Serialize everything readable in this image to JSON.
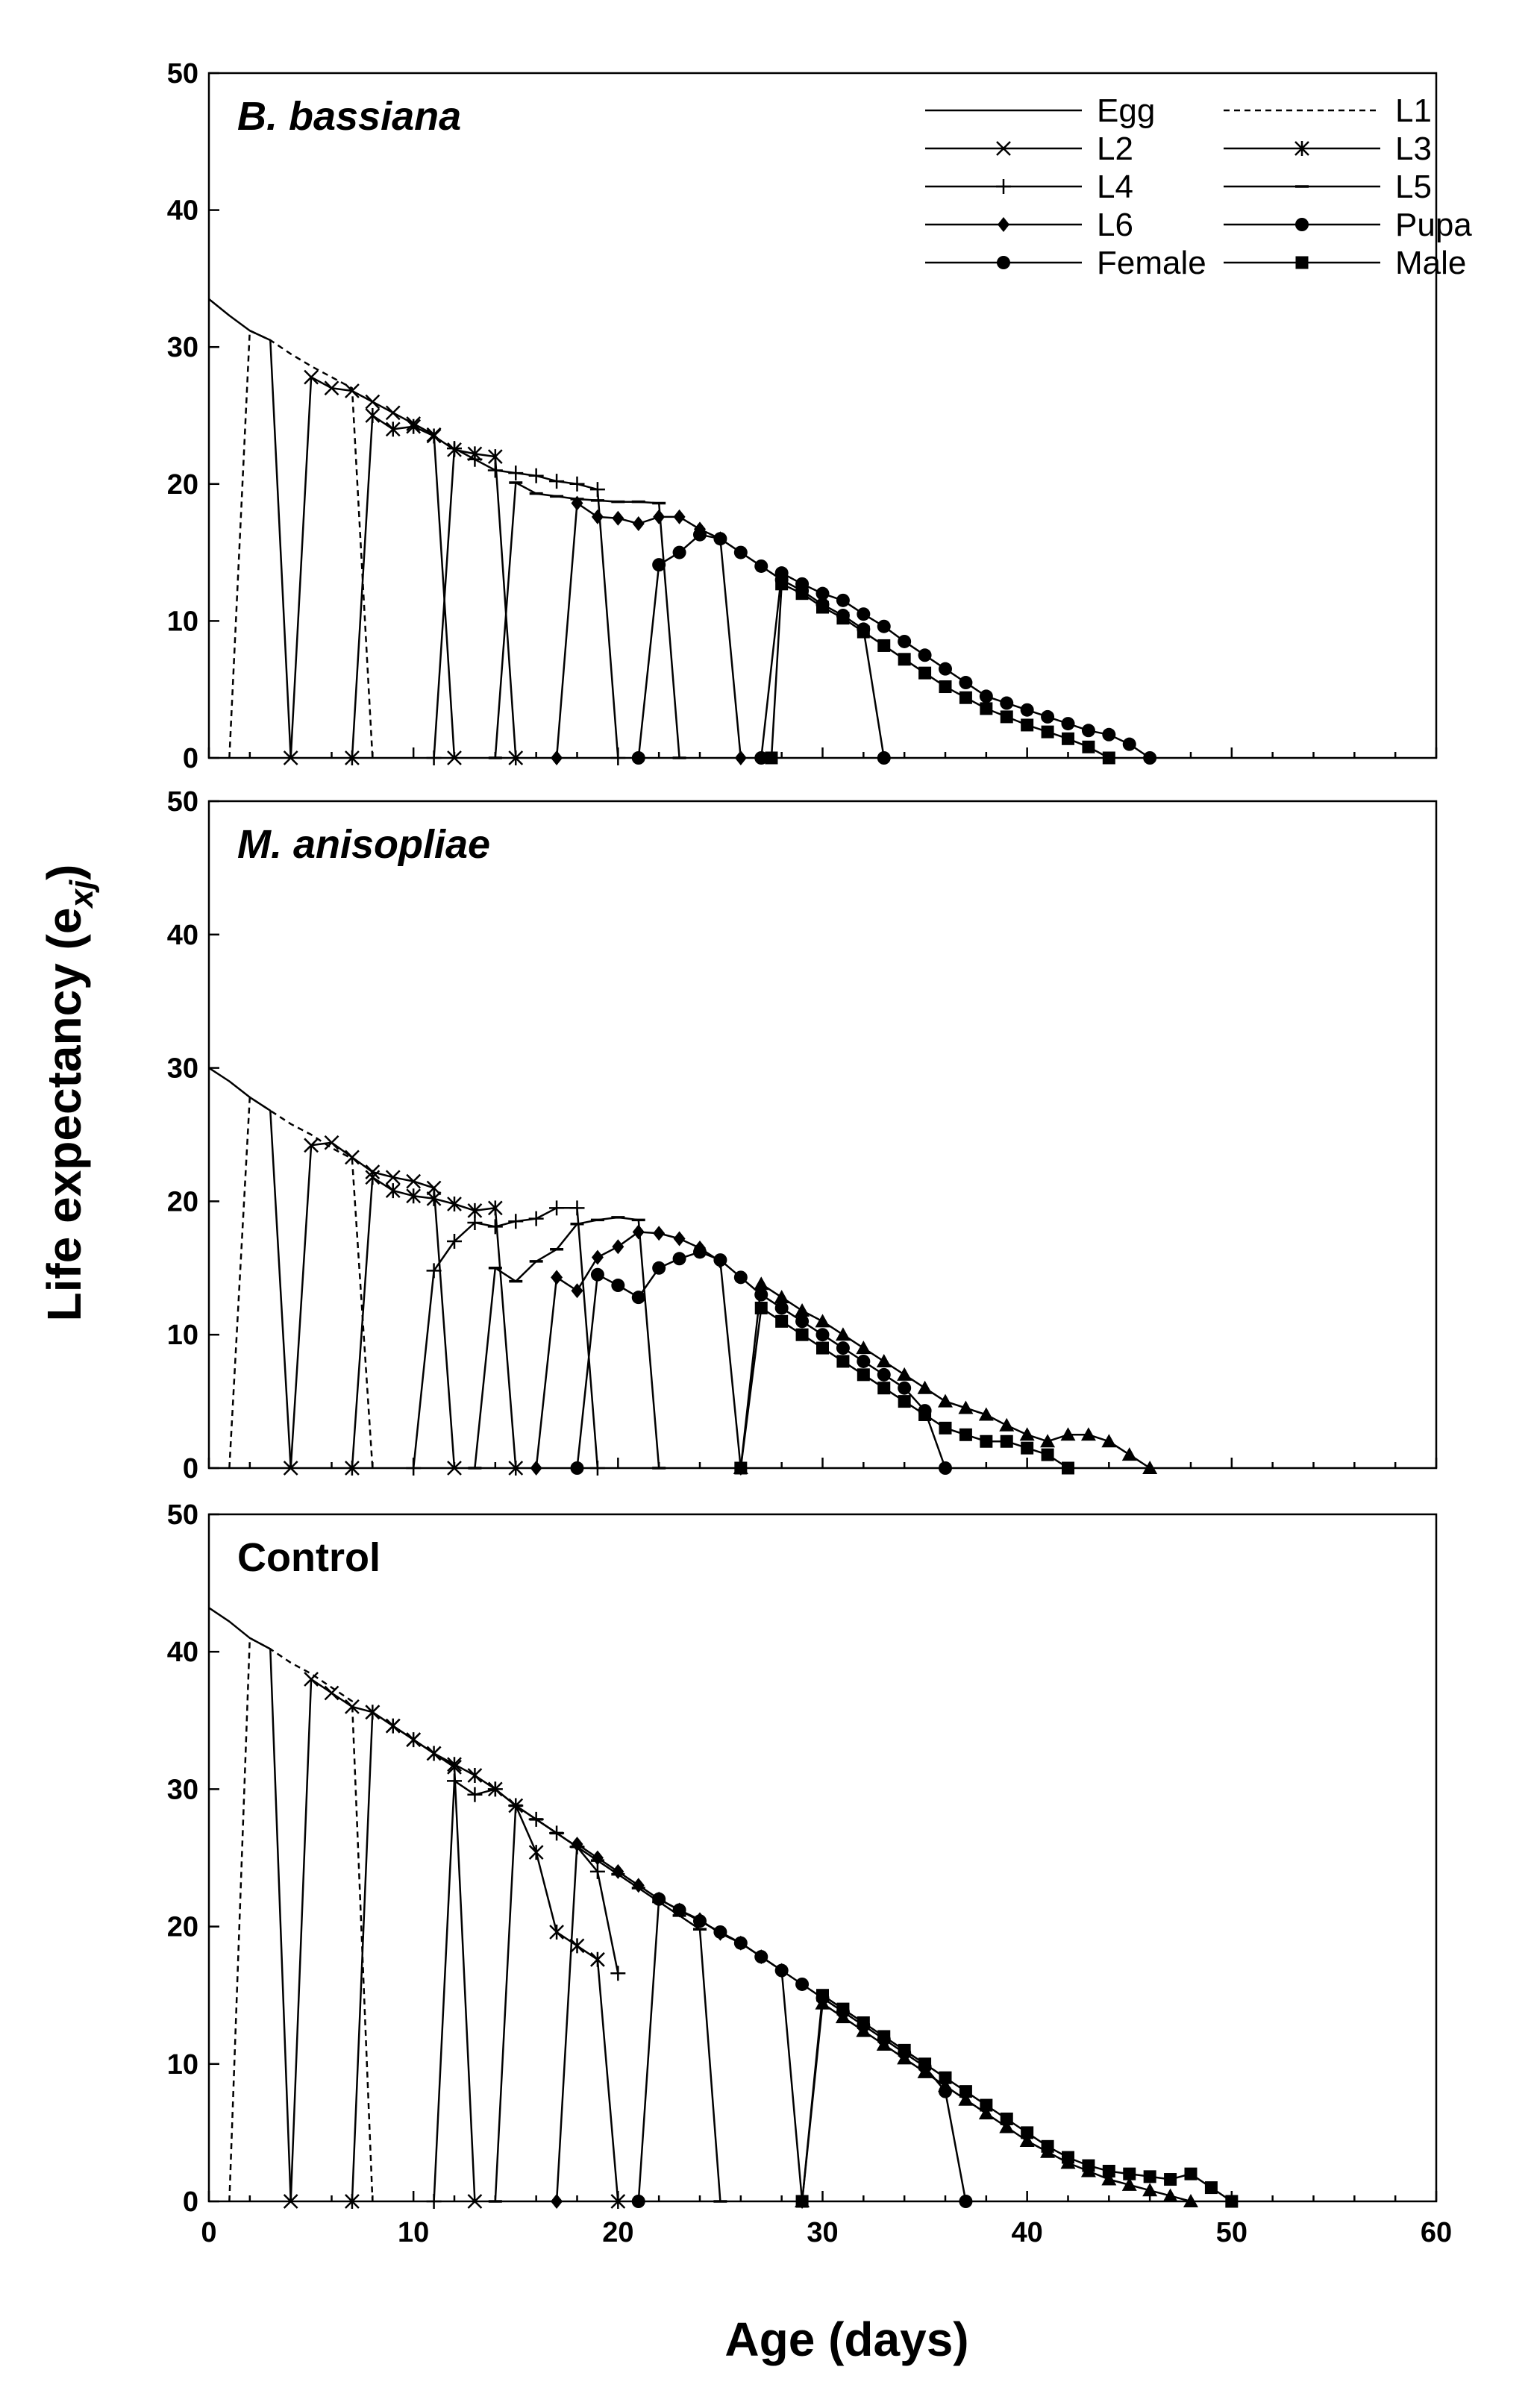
{
  "chart_data": {
    "type": "line",
    "ylabel": "Life expectancy (e",
    "ylabel_sub": "xj",
    "ylabel_close": ")",
    "xlabel": "Age (days)",
    "xlim": [
      0,
      60
    ],
    "ylim": [
      0,
      50
    ],
    "xticks": [
      0,
      10,
      20,
      30,
      40,
      50,
      60
    ],
    "yticks": [
      0,
      10,
      20,
      30,
      40,
      50
    ],
    "legend": [
      {
        "name": "Egg",
        "style": "solid",
        "marker": "none"
      },
      {
        "name": "L1",
        "style": "dashed",
        "marker": "none"
      },
      {
        "name": "L2",
        "style": "solid",
        "marker": "x"
      },
      {
        "name": "L3",
        "style": "solid",
        "marker": "asterisk"
      },
      {
        "name": "L4",
        "style": "solid",
        "marker": "plus"
      },
      {
        "name": "L5",
        "style": "solid",
        "marker": "dash"
      },
      {
        "name": "L6",
        "style": "solid",
        "marker": "diamond"
      },
      {
        "name": "Pupa",
        "style": "solid",
        "marker": "circle"
      },
      {
        "name": "Female",
        "style": "solid",
        "marker": "circle"
      },
      {
        "name": "Male",
        "style": "solid",
        "marker": "square"
      }
    ],
    "panels": [
      {
        "title": "B. bassiana",
        "title_italic": true,
        "series": [
          {
            "name": "Egg",
            "marker": "none",
            "x": [
              0,
              1,
              2,
              3,
              4
            ],
            "y": [
              33.5,
              32.3,
              31.2,
              30.5,
              0
            ]
          },
          {
            "name": "L1",
            "marker": "none",
            "dashed": true,
            "x": [
              1,
              2,
              3,
              4,
              5,
              6,
              7,
              8
            ],
            "y": [
              0,
              31.2,
              30.5,
              29.5,
              28.6,
              27.8,
              27.0,
              0
            ]
          },
          {
            "name": "L2",
            "marker": "x",
            "x": [
              4,
              5,
              6,
              7,
              8,
              9,
              10,
              11,
              12
            ],
            "y": [
              0,
              27.8,
              27.0,
              26.8,
              26.0,
              25.2,
              24.4,
              23.6,
              0
            ]
          },
          {
            "name": "L3",
            "marker": "asterisk",
            "x": [
              7,
              8,
              9,
              10,
              11,
              12,
              13,
              14,
              15
            ],
            "y": [
              0,
              25.0,
              24.0,
              24.2,
              23.5,
              22.5,
              22.2,
              22.0,
              0
            ]
          },
          {
            "name": "L4",
            "marker": "plus",
            "x": [
              11,
              12,
              13,
              14,
              15,
              16,
              17,
              18,
              19,
              20
            ],
            "y": [
              0,
              22.6,
              21.8,
              21.0,
              20.8,
              20.6,
              20.2,
              20.0,
              19.6,
              0
            ]
          },
          {
            "name": "L5",
            "marker": "dash",
            "x": [
              14,
              15,
              16,
              17,
              18,
              19,
              20,
              21,
              22,
              23
            ],
            "y": [
              0,
              20.1,
              19.3,
              19.1,
              18.9,
              18.8,
              18.7,
              18.7,
              18.6,
              0
            ]
          },
          {
            "name": "L6",
            "marker": "diamond",
            "x": [
              17,
              18,
              19,
              20,
              21,
              22,
              23,
              24,
              25,
              26
            ],
            "y": [
              0,
              18.6,
              17.6,
              17.5,
              17.1,
              17.6,
              17.6,
              16.7,
              16.0,
              0
            ]
          },
          {
            "name": "Pupa",
            "marker": "circle",
            "x": [
              21,
              22,
              23,
              24,
              25,
              26,
              27,
              28,
              29,
              30,
              31,
              32,
              33
            ],
            "y": [
              0,
              14.1,
              15.0,
              16.3,
              16.0,
              15.0,
              14.0,
              13.0,
              12.2,
              11.2,
              10.4,
              9.4,
              0
            ]
          },
          {
            "name": "Female",
            "marker": "circle",
            "x": [
              27,
              28,
              29,
              30,
              31,
              32,
              33,
              34,
              35,
              36,
              37,
              38,
              39,
              40,
              41,
              42,
              43,
              44,
              45,
              46
            ],
            "y": [
              0,
              13.5,
              12.7,
              12.0,
              11.5,
              10.5,
              9.6,
              8.5,
              7.5,
              6.5,
              5.5,
              4.5,
              4.0,
              3.5,
              3.0,
              2.5,
              2.0,
              1.7,
              1.0,
              0
            ]
          },
          {
            "name": "Male",
            "marker": "square",
            "x": [
              27.5,
              28,
              29,
              30,
              31,
              32,
              33,
              34,
              35,
              36,
              37,
              38,
              39,
              40,
              41,
              42,
              43,
              44
            ],
            "y": [
              0,
              12.7,
              12.0,
              11.0,
              10.2,
              9.2,
              8.2,
              7.2,
              6.2,
              5.2,
              4.4,
              3.6,
              3.0,
              2.4,
              1.9,
              1.4,
              0.8,
              0
            ]
          }
        ]
      },
      {
        "title": "M. anisopliae",
        "title_italic": true,
        "series": [
          {
            "name": "Egg",
            "marker": "none",
            "x": [
              0,
              1,
              2,
              3,
              4
            ],
            "y": [
              30.0,
              29.0,
              27.8,
              26.8,
              0
            ]
          },
          {
            "name": "L1",
            "marker": "none",
            "dashed": true,
            "x": [
              1,
              2,
              3,
              4,
              5,
              6,
              7,
              8
            ],
            "y": [
              0,
              27.8,
              26.8,
              25.8,
              25.0,
              24.0,
              23.2,
              0
            ]
          },
          {
            "name": "L2",
            "marker": "x",
            "x": [
              4,
              5,
              6,
              7,
              8,
              9,
              10,
              11,
              12
            ],
            "y": [
              0,
              24.2,
              24.4,
              23.3,
              22.2,
              21.8,
              21.5,
              21.0,
              0
            ]
          },
          {
            "name": "L3",
            "marker": "asterisk",
            "x": [
              7,
              8,
              9,
              10,
              11,
              12,
              13,
              14,
              15
            ],
            "y": [
              0,
              21.8,
              20.8,
              20.4,
              20.2,
              19.8,
              19.3,
              19.5,
              0
            ]
          },
          {
            "name": "L4",
            "marker": "plus",
            "x": [
              10,
              11,
              12,
              13,
              14,
              15,
              16,
              17,
              18,
              19
            ],
            "y": [
              0,
              14.8,
              17.0,
              18.4,
              18.1,
              18.5,
              18.7,
              19.5,
              19.5,
              0
            ]
          },
          {
            "name": "L5",
            "marker": "dash",
            "x": [
              13,
              14,
              15,
              16,
              17,
              18,
              19,
              20,
              21,
              22
            ],
            "y": [
              0,
              15.0,
              14.0,
              15.5,
              16.4,
              18.3,
              18.6,
              18.8,
              18.6,
              0
            ]
          },
          {
            "name": "L6",
            "marker": "diamond",
            "x": [
              16,
              17,
              18,
              19,
              20,
              21,
              22,
              23,
              24,
              25,
              26
            ],
            "y": [
              0,
              14.3,
              13.3,
              15.8,
              16.6,
              17.7,
              17.6,
              17.2,
              16.5,
              15.5,
              0
            ]
          },
          {
            "name": "Pupa",
            "marker": "circle",
            "x": [
              18,
              19,
              20,
              21,
              22,
              23,
              24,
              25,
              26,
              27,
              28,
              29,
              30,
              31,
              32,
              33,
              34,
              35,
              36
            ],
            "y": [
              0,
              14.5,
              13.7,
              12.8,
              15.0,
              15.7,
              16.2,
              15.6,
              14.3,
              13.0,
              12.0,
              11.0,
              10.0,
              9.0,
              8.0,
              7.0,
              6.0,
              4.3,
              0
            ]
          },
          {
            "name": "Female",
            "marker": "triangle",
            "x": [
              26,
              27,
              28,
              29,
              30,
              31,
              32,
              33,
              34,
              35,
              36,
              37,
              38,
              39,
              40,
              41,
              42,
              43,
              44,
              45,
              46
            ],
            "y": [
              0,
              13.8,
              12.8,
              11.8,
              11.0,
              10.0,
              9.0,
              8.0,
              7.0,
              6.0,
              5.0,
              4.5,
              4.0,
              3.2,
              2.5,
              2.0,
              2.5,
              2.5,
              2.0,
              1.0,
              0
            ]
          },
          {
            "name": "Male",
            "marker": "square",
            "x": [
              26,
              27,
              28,
              29,
              30,
              31,
              32,
              33,
              34,
              35,
              36,
              37,
              38,
              39,
              40,
              41,
              42
            ],
            "y": [
              0,
              12.0,
              11.0,
              10.0,
              9.0,
              8.0,
              7.0,
              6.0,
              5.0,
              4.0,
              3.0,
              2.5,
              2.0,
              2.0,
              1.5,
              1.0,
              0
            ]
          }
        ]
      },
      {
        "title": "Control",
        "title_italic": false,
        "series": [
          {
            "name": "Egg",
            "marker": "none",
            "x": [
              0,
              1,
              2,
              3,
              4
            ],
            "y": [
              43.2,
              42.2,
              41.0,
              40.2,
              0
            ]
          },
          {
            "name": "L1",
            "marker": "none",
            "dashed": true,
            "x": [
              1,
              2,
              3,
              4,
              5,
              6,
              7,
              8
            ],
            "y": [
              0,
              41.0,
              40.2,
              39.2,
              38.4,
              37.4,
              36.4,
              0
            ]
          },
          {
            "name": "L2",
            "marker": "x",
            "x": [
              4,
              5,
              6,
              7,
              8,
              9,
              10,
              11,
              12,
              13
            ],
            "y": [
              0,
              38.0,
              37.0,
              36.0,
              35.6,
              34.6,
              33.6,
              32.6,
              31.6,
              0
            ]
          },
          {
            "name": "L3",
            "marker": "asterisk",
            "x": [
              7,
              8,
              9,
              10,
              11,
              12,
              13,
              14,
              15,
              16,
              17,
              18,
              19,
              20
            ],
            "y": [
              0,
              35.6,
              34.6,
              33.6,
              32.6,
              31.8,
              31.0,
              30.0,
              28.8,
              25.4,
              19.6,
              18.6,
              17.6,
              0
            ]
          },
          {
            "name": "L4",
            "marker": "plus",
            "x": [
              11,
              12,
              13,
              14,
              15,
              16,
              17,
              18,
              19,
              20
            ],
            "y": [
              0,
              30.6,
              29.6,
              30.0,
              28.8,
              27.8,
              26.8,
              25.8,
              24.0,
              16.6
            ]
          },
          {
            "name": "L5",
            "marker": "dash",
            "x": [
              14,
              15,
              16,
              17,
              18,
              19,
              20,
              21,
              22,
              23,
              24,
              25
            ],
            "y": [
              0,
              28.8,
              27.8,
              26.8,
              25.8,
              24.8,
              23.8,
              22.8,
              21.8,
              20.8,
              19.8,
              0
            ]
          },
          {
            "name": "L6",
            "marker": "diamond",
            "x": [
              17,
              18,
              19,
              20,
              21,
              22,
              23,
              24,
              25,
              26,
              27,
              28,
              29
            ],
            "y": [
              0,
              26.0,
              25.0,
              24.0,
              23.0,
              22.0,
              21.2,
              20.5,
              19.5,
              18.8,
              17.8,
              16.8,
              0
            ]
          },
          {
            "name": "Pupa",
            "marker": "circle",
            "x": [
              21,
              22,
              23,
              24,
              25,
              26,
              27,
              28,
              29,
              30,
              31,
              32,
              33,
              34,
              35,
              36,
              37
            ],
            "y": [
              0,
              22.0,
              21.2,
              20.4,
              19.6,
              18.8,
              17.8,
              16.8,
              15.8,
              14.8,
              13.8,
              12.8,
              11.8,
              10.8,
              9.8,
              8.0,
              0
            ]
          },
          {
            "name": "Female",
            "marker": "triangle",
            "x": [
              29,
              30,
              31,
              32,
              33,
              34,
              35,
              36,
              37,
              38,
              39,
              40,
              41,
              42,
              43,
              44,
              45,
              46,
              47,
              48
            ],
            "y": [
              0,
              14.4,
              13.4,
              12.4,
              11.4,
              10.4,
              9.4,
              8.4,
              7.4,
              6.4,
              5.4,
              4.4,
              3.6,
              2.8,
              2.2,
              1.6,
              1.2,
              0.8,
              0.4,
              0
            ]
          },
          {
            "name": "Male",
            "marker": "square",
            "x": [
              29,
              30,
              31,
              32,
              33,
              34,
              35,
              36,
              37,
              38,
              39,
              40,
              41,
              42,
              43,
              44,
              45,
              46,
              47,
              48,
              49,
              50
            ],
            "y": [
              0,
              15.0,
              14.0,
              13.0,
              12.0,
              11.0,
              10.0,
              9.0,
              8.0,
              7.0,
              6.0,
              5.0,
              4.0,
              3.2,
              2.6,
              2.2,
              2.0,
              1.8,
              1.6,
              2.0,
              1.0,
              0
            ]
          }
        ]
      }
    ]
  }
}
